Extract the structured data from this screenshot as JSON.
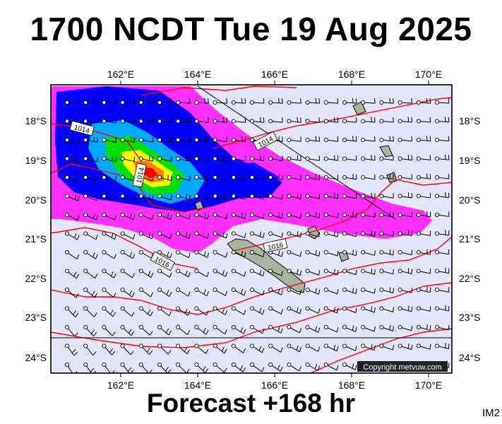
{
  "title": "1700 NCDT Tue 19 Aug 2025",
  "footer": "Forecast +168 hr",
  "product_code": "IM2",
  "copyright": "Copyright metvuw.com",
  "lon_ticks": [
    "162°E",
    "164°E",
    "166°E",
    "168°E",
    "170°E"
  ],
  "lat_ticks": [
    "18°S",
    "19°S",
    "20°S",
    "21°S",
    "22°S",
    "23°S",
    "24°S"
  ],
  "isobar_labels": [
    "1014",
    "1014",
    "1014",
    "1016",
    "1016"
  ],
  "colors": {
    "background": "#e6e6fa",
    "land": "#a8b4a0",
    "isobar": "#ff0000",
    "rain_light": "#ff30ff",
    "rain_mid": "#0000ff",
    "rain_heavy": "#00e000",
    "rain_peak": "#ff0000"
  }
}
